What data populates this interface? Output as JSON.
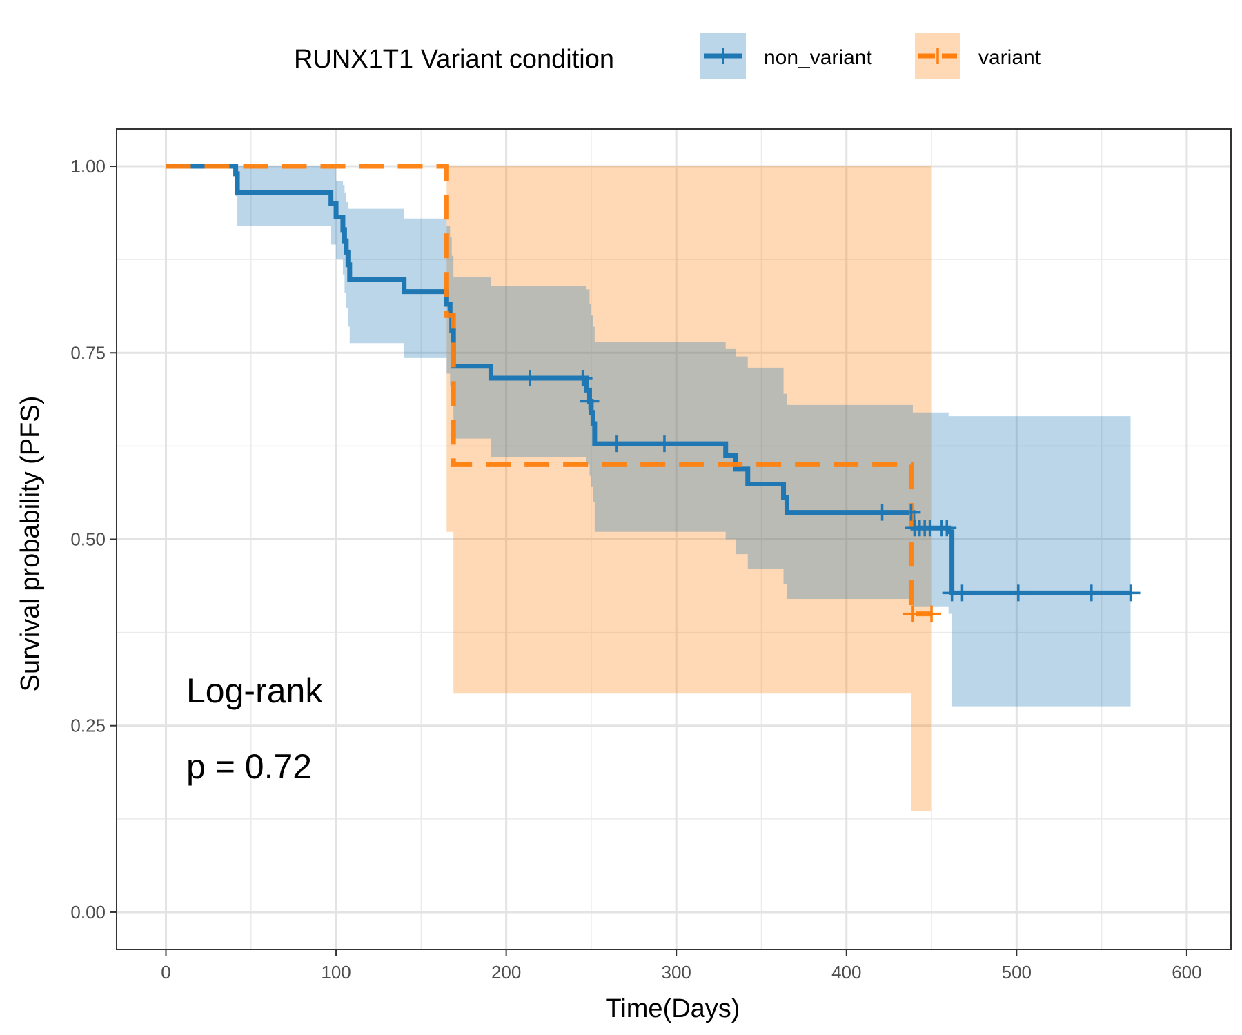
{
  "chart_data": {
    "type": "line",
    "subtype": "kaplan-meier step plot with confidence bands and censor marks",
    "xlabel": "Time(Days)",
    "ylabel": "Survival probability (PFS)",
    "xlim": [
      -29,
      626
    ],
    "ylim": [
      -0.05,
      1.05
    ],
    "x_ticks": [
      0,
      100,
      200,
      300,
      400,
      500,
      600
    ],
    "x_tick_labels": [
      "0",
      "100",
      "200",
      "300",
      "400",
      "500",
      "600"
    ],
    "y_ticks": [
      0,
      0.25,
      0.5,
      0.75,
      1.0
    ],
    "y_tick_labels": [
      "0.00",
      "0.25",
      "0.50",
      "0.75",
      "1.00"
    ],
    "grid": true,
    "legend": {
      "title": "RUNX1T1 Variant condition",
      "position": "top"
    },
    "annotations": [
      "Log-rank",
      "p = 0.72"
    ],
    "series": [
      {
        "name": "non_variant",
        "color": "#1f77b4",
        "fill": "#1f77b4",
        "line_style": "solid",
        "steps": [
          [
            0,
            1.0
          ],
          [
            41,
            0.99
          ],
          [
            42,
            0.965
          ],
          [
            97,
            0.95
          ],
          [
            100,
            0.932
          ],
          [
            104,
            0.915
          ],
          [
            105,
            0.9
          ],
          [
            106,
            0.885
          ],
          [
            107,
            0.868
          ],
          [
            108,
            0.848
          ],
          [
            140,
            0.832
          ],
          [
            165,
            0.815
          ],
          [
            167,
            0.8
          ],
          [
            168,
            0.78
          ],
          [
            169,
            0.732
          ],
          [
            191,
            0.716
          ],
          [
            247,
            0.7
          ],
          [
            249,
            0.685
          ],
          [
            250,
            0.67
          ],
          [
            251,
            0.655
          ],
          [
            252,
            0.628
          ],
          [
            329,
            0.612
          ],
          [
            335,
            0.594
          ],
          [
            342,
            0.574
          ],
          [
            363,
            0.556
          ],
          [
            365,
            0.536
          ],
          [
            439,
            0.515
          ],
          [
            460,
            0.51
          ],
          [
            462,
            0.428
          ],
          [
            567,
            0.428
          ]
        ],
        "ci_lower": [
          [
            0,
            1.0
          ],
          [
            41,
            0.96
          ],
          [
            42,
            0.92
          ],
          [
            97,
            0.895
          ],
          [
            100,
            0.875
          ],
          [
            104,
            0.855
          ],
          [
            105,
            0.83
          ],
          [
            106,
            0.81
          ],
          [
            107,
            0.785
          ],
          [
            108,
            0.763
          ],
          [
            140,
            0.743
          ],
          [
            165,
            0.722
          ],
          [
            167,
            0.705
          ],
          [
            168,
            0.685
          ],
          [
            169,
            0.635
          ],
          [
            191,
            0.61
          ],
          [
            247,
            0.6
          ],
          [
            249,
            0.585
          ],
          [
            250,
            0.57
          ],
          [
            251,
            0.55
          ],
          [
            252,
            0.51
          ],
          [
            329,
            0.5
          ],
          [
            335,
            0.48
          ],
          [
            342,
            0.46
          ],
          [
            363,
            0.44
          ],
          [
            365,
            0.42
          ],
          [
            439,
            0.41
          ],
          [
            460,
            0.4
          ],
          [
            462,
            0.276
          ],
          [
            567,
            0.276
          ]
        ],
        "ci_upper": [
          [
            0,
            1.0
          ],
          [
            97,
            1.0
          ],
          [
            100,
            0.98
          ],
          [
            104,
            0.975
          ],
          [
            105,
            0.965
          ],
          [
            106,
            0.952
          ],
          [
            107,
            0.943
          ],
          [
            140,
            0.93
          ],
          [
            165,
            0.92
          ],
          [
            167,
            0.905
          ],
          [
            168,
            0.88
          ],
          [
            169,
            0.852
          ],
          [
            191,
            0.84
          ],
          [
            247,
            0.835
          ],
          [
            249,
            0.815
          ],
          [
            250,
            0.8
          ],
          [
            251,
            0.785
          ],
          [
            252,
            0.765
          ],
          [
            329,
            0.755
          ],
          [
            335,
            0.745
          ],
          [
            342,
            0.73
          ],
          [
            363,
            0.695
          ],
          [
            365,
            0.68
          ],
          [
            439,
            0.67
          ],
          [
            460,
            0.665
          ],
          [
            462,
            0.665
          ],
          [
            567,
            0.665
          ]
        ],
        "censor_times": [
          214,
          245,
          249,
          265,
          293,
          421,
          438,
          440,
          443,
          446,
          449,
          456,
          459,
          462,
          468,
          501,
          544,
          567
        ]
      },
      {
        "name": "variant",
        "color": "#ff7f0e",
        "fill": "#ff7f0e",
        "line_style": "dashed",
        "steps": [
          [
            0,
            1.0
          ],
          [
            165,
            0.8
          ],
          [
            169,
            0.6
          ],
          [
            438,
            0.4
          ],
          [
            450,
            0.4
          ]
        ],
        "ci_lower": [
          [
            0,
            1.0
          ],
          [
            165,
            0.51
          ],
          [
            169,
            0.293
          ],
          [
            438,
            0.136
          ],
          [
            450,
            0.136
          ]
        ],
        "ci_upper": [
          [
            0,
            1.0
          ],
          [
            450,
            1.0
          ]
        ],
        "censor_times": [
          439,
          450
        ]
      }
    ]
  }
}
